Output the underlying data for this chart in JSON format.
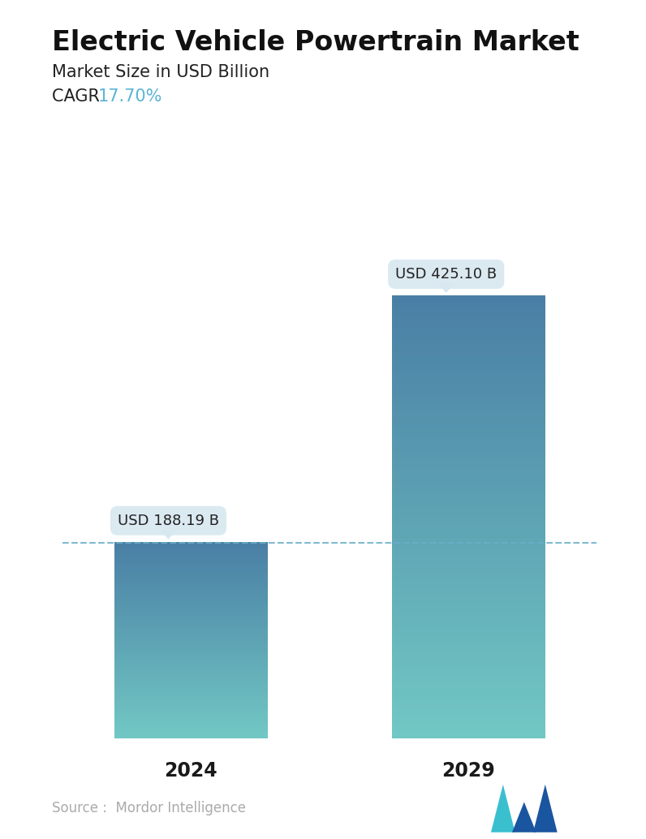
{
  "title": "Electric Vehicle Powertrain Market",
  "subtitle": "Market Size in USD Billion",
  "cagr_label": "CAGR  ",
  "cagr_value": "17.70%",
  "cagr_color": "#5ab4d6",
  "categories": [
    "2024",
    "2029"
  ],
  "values": [
    188.19,
    425.1
  ],
  "bar_labels": [
    "USD 188.19 B",
    "USD 425.10 B"
  ],
  "bar_top_color": "#4a7fa5",
  "bar_bottom_color": "#72c8c4",
  "dashed_line_color": "#6aafc8",
  "dashed_line_y": 188.19,
  "source_text": "Source :  Mordor Intelligence",
  "source_color": "#aaaaaa",
  "background_color": "#ffffff",
  "title_fontsize": 24,
  "subtitle_fontsize": 15,
  "cagr_fontsize": 15,
  "xlabel_fontsize": 17,
  "bar_label_fontsize": 13,
  "ylim": [
    0,
    500
  ],
  "tooltip_bg": "#d8e8f0",
  "tooltip_text_color": "#222222",
  "bar_positions": [
    0,
    1
  ],
  "bar_width": 0.55
}
